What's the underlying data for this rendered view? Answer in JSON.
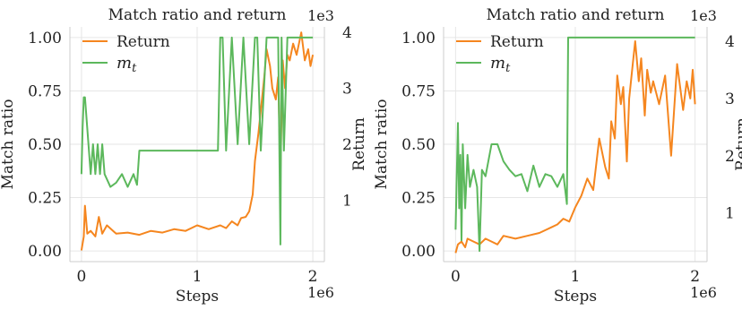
{
  "chart_data": [
    {
      "type": "line",
      "title": "Match ratio and return",
      "xlabel": "Steps",
      "x_scale_label": "1e6",
      "ylabel_left": "Match ratio",
      "ylabel_right": "Return",
      "right_scale_label": "1e3",
      "xlim": [
        -0.1,
        2.1
      ],
      "xticks": [
        "0",
        "1",
        "2"
      ],
      "ylim_left": [
        -0.05,
        1.05
      ],
      "yticks_left": [
        "0.00",
        "0.25",
        "0.50",
        "0.75",
        "1.00"
      ],
      "ylim_right": [
        -0.1,
        4.1
      ],
      "yticks_right": [
        "1",
        "2",
        "3",
        "4"
      ],
      "grid": true,
      "legend_position": "top-left",
      "series": [
        {
          "name": "Return",
          "axis": "right",
          "color": "#f5861f",
          "x": [
            0.0,
            0.02,
            0.03,
            0.05,
            0.08,
            0.12,
            0.15,
            0.18,
            0.22,
            0.3,
            0.4,
            0.5,
            0.6,
            0.7,
            0.8,
            0.9,
            1.0,
            1.1,
            1.2,
            1.25,
            1.3,
            1.35,
            1.38,
            1.42,
            1.45,
            1.48,
            1.5,
            1.53,
            1.55,
            1.58,
            1.6,
            1.63,
            1.65,
            1.68,
            1.7,
            1.72,
            1.74,
            1.76,
            1.78,
            1.8,
            1.83,
            1.86,
            1.9,
            1.93,
            1.96,
            1.98,
            2.0
          ],
          "values": [
            0.1,
            0.35,
            0.9,
            0.4,
            0.45,
            0.35,
            0.7,
            0.4,
            0.55,
            0.4,
            0.42,
            0.38,
            0.45,
            0.42,
            0.48,
            0.45,
            0.55,
            0.48,
            0.55,
            0.5,
            0.62,
            0.55,
            0.68,
            0.7,
            0.8,
            1.1,
            1.7,
            2.2,
            2.6,
            3.2,
            3.7,
            3.4,
            3.0,
            2.8,
            3.2,
            1.5,
            3.5,
            3.0,
            3.6,
            3.5,
            3.8,
            3.6,
            4.0,
            3.5,
            3.7,
            3.4,
            3.6
          ]
        },
        {
          "name": "m_t",
          "axis": "left",
          "color": "#5cb85c",
          "x": [
            0.0,
            0.01,
            0.02,
            0.03,
            0.08,
            0.1,
            0.12,
            0.14,
            0.16,
            0.18,
            0.2,
            0.25,
            0.3,
            0.35,
            0.4,
            0.45,
            0.48,
            0.5,
            0.6,
            0.7,
            0.8,
            0.9,
            1.0,
            1.1,
            1.18,
            1.2,
            1.22,
            1.25,
            1.3,
            1.35,
            1.4,
            1.45,
            1.5,
            1.52,
            1.55,
            1.6,
            1.65,
            1.7,
            1.72,
            1.73,
            1.75,
            1.78,
            1.8,
            1.85,
            1.9,
            2.0
          ],
          "values": [
            0.36,
            0.58,
            0.72,
            0.72,
            0.36,
            0.5,
            0.36,
            0.5,
            0.36,
            0.5,
            0.36,
            0.3,
            0.32,
            0.36,
            0.3,
            0.36,
            0.31,
            0.47,
            0.47,
            0.47,
            0.47,
            0.47,
            0.47,
            0.47,
            0.47,
            1.0,
            1.0,
            0.47,
            1.0,
            0.5,
            1.0,
            0.5,
            1.0,
            1.0,
            0.47,
            1.0,
            1.0,
            1.0,
            0.03,
            1.0,
            0.47,
            1.0,
            1.0,
            1.0,
            1.0,
            1.0
          ]
        }
      ]
    },
    {
      "type": "line",
      "title": "Match ratio and return",
      "xlabel": "Steps",
      "x_scale_label": "1e6",
      "ylabel_left": "Match ratio",
      "ylabel_right": "Return",
      "right_scale_label": "1e3",
      "xlim": [
        -0.1,
        2.1
      ],
      "xticks": [
        "0",
        "1",
        "2"
      ],
      "ylim_left": [
        -0.05,
        1.05
      ],
      "yticks_left": [
        "0.00",
        "0.25",
        "0.50",
        "0.75",
        "1.00"
      ],
      "ylim_right": [
        0.15,
        4.25
      ],
      "yticks_right": [
        "1",
        "2",
        "3",
        "4"
      ],
      "grid": true,
      "legend_position": "top-left",
      "series": [
        {
          "name": "Return",
          "axis": "right",
          "color": "#f5861f",
          "x": [
            0.0,
            0.02,
            0.05,
            0.08,
            0.1,
            0.15,
            0.2,
            0.25,
            0.3,
            0.35,
            0.4,
            0.5,
            0.6,
            0.7,
            0.8,
            0.85,
            0.9,
            0.95,
            1.0,
            1.05,
            1.1,
            1.15,
            1.2,
            1.25,
            1.28,
            1.3,
            1.33,
            1.35,
            1.38,
            1.4,
            1.43,
            1.45,
            1.48,
            1.5,
            1.53,
            1.55,
            1.58,
            1.6,
            1.63,
            1.65,
            1.7,
            1.75,
            1.8,
            1.85,
            1.9,
            1.93,
            1.96,
            1.98,
            2.0
          ],
          "values": [
            0.3,
            0.45,
            0.5,
            0.4,
            0.55,
            0.5,
            0.45,
            0.55,
            0.5,
            0.45,
            0.6,
            0.55,
            0.6,
            0.65,
            0.75,
            0.8,
            0.9,
            0.85,
            1.1,
            1.3,
            1.6,
            1.4,
            2.3,
            1.8,
            1.6,
            2.6,
            2.3,
            3.4,
            2.9,
            3.2,
            1.9,
            3.0,
            3.6,
            4.0,
            3.3,
            3.7,
            2.7,
            3.5,
            3.1,
            3.3,
            2.9,
            3.4,
            2.0,
            3.6,
            2.8,
            3.3,
            3.0,
            3.5,
            2.9
          ]
        },
        {
          "name": "m_t",
          "axis": "left",
          "color": "#5cb85c",
          "x": [
            0.0,
            0.02,
            0.03,
            0.04,
            0.05,
            0.06,
            0.08,
            0.1,
            0.12,
            0.15,
            0.18,
            0.2,
            0.22,
            0.25,
            0.3,
            0.35,
            0.4,
            0.45,
            0.5,
            0.55,
            0.6,
            0.65,
            0.7,
            0.75,
            0.8,
            0.85,
            0.9,
            0.93,
            0.94,
            1.0,
            1.2,
            1.4,
            1.6,
            1.8,
            2.0
          ],
          "values": [
            0.1,
            0.6,
            0.2,
            0.45,
            0.05,
            0.5,
            0.2,
            0.45,
            0.3,
            0.38,
            0.3,
            0.0,
            0.38,
            0.35,
            0.5,
            0.5,
            0.42,
            0.38,
            0.35,
            0.36,
            0.28,
            0.4,
            0.3,
            0.36,
            0.35,
            0.3,
            0.36,
            0.22,
            1.0,
            1.0,
            1.0,
            1.0,
            1.0,
            1.0,
            1.0
          ]
        }
      ]
    }
  ]
}
